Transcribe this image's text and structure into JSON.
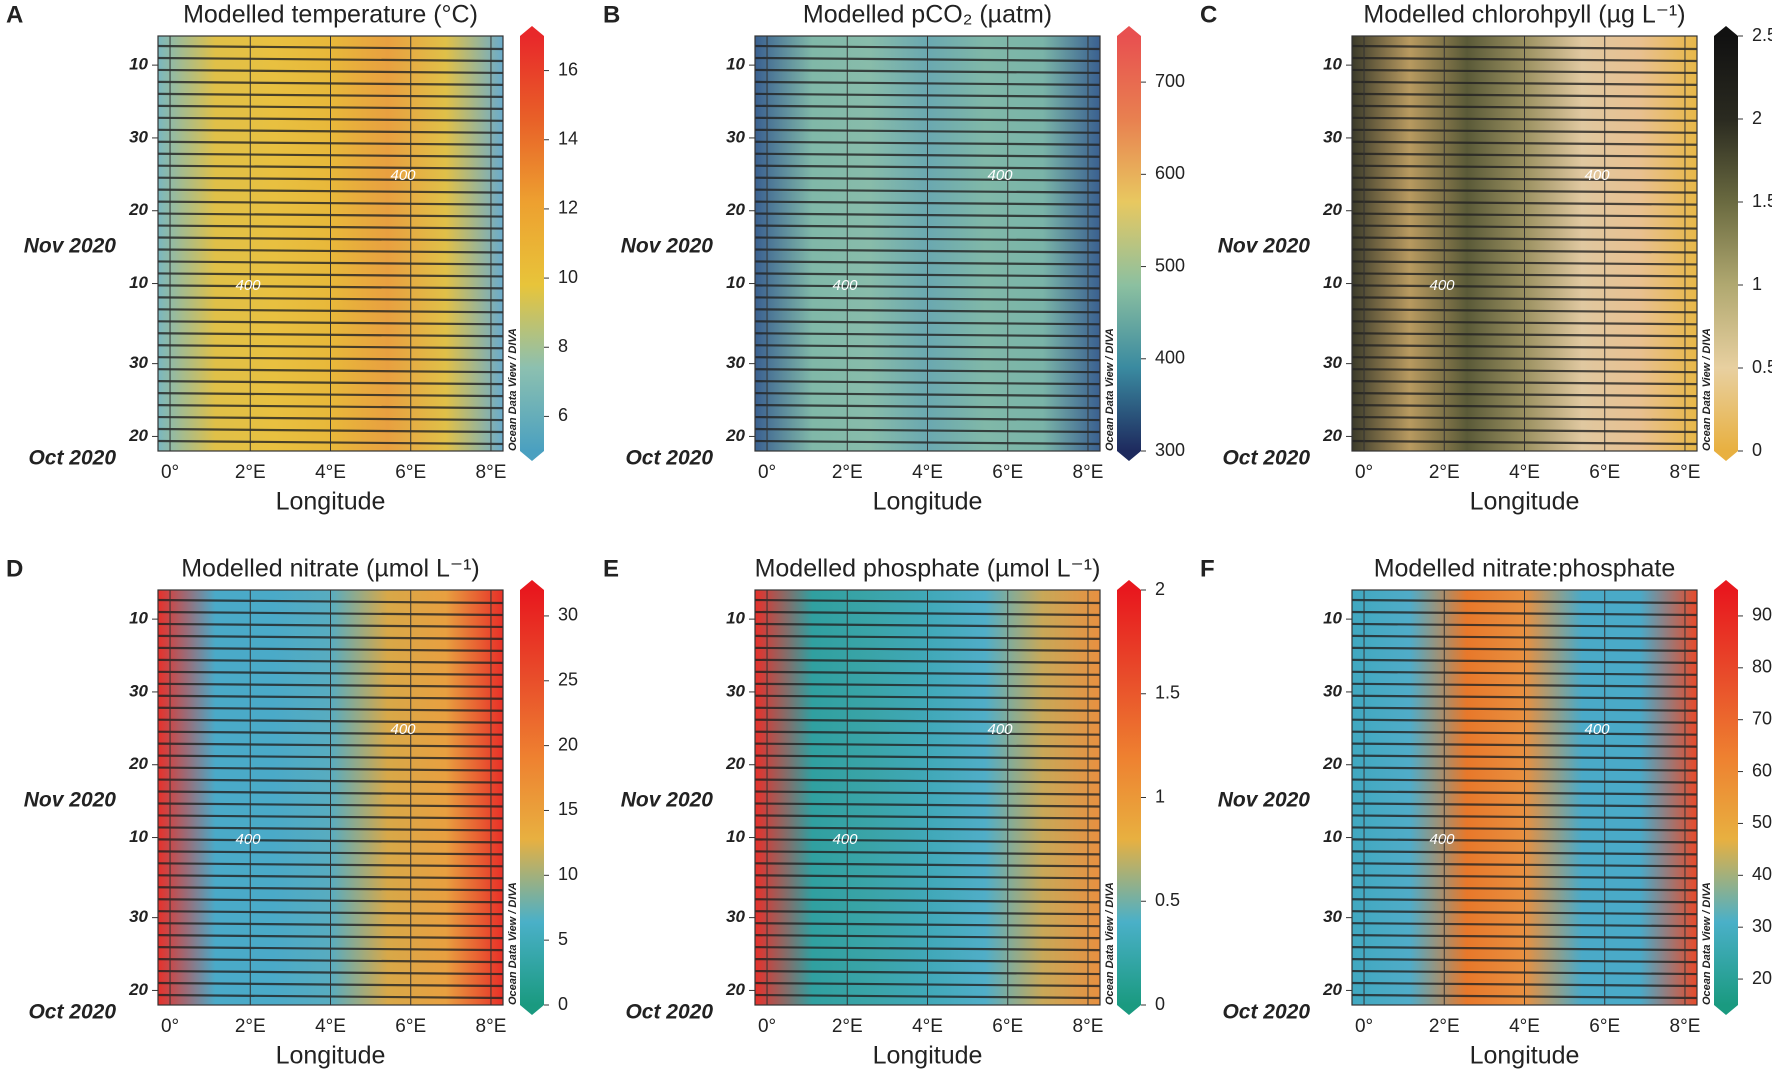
{
  "chart_data": [
    {
      "type": "heatmap",
      "panel_label": "A",
      "title": "Modelled temperature (°C)",
      "xlabel": "Longitude",
      "xlim": [
        -0.3,
        8.3
      ],
      "xticks": [
        {
          "value": 0,
          "label": "0°"
        },
        {
          "value": 2,
          "label": "2°E"
        },
        {
          "value": 4,
          "label": "4°E"
        },
        {
          "value": 6,
          "label": "6°E"
        },
        {
          "value": 8,
          "label": "8°E"
        }
      ],
      "ylim": [
        "2020-10-18",
        "2020-12-14"
      ],
      "yticks": [
        {
          "value": "2020-12-10",
          "label": "10"
        },
        {
          "value": "2020-11-30",
          "label": "30"
        },
        {
          "value": "2020-11-20",
          "label": "20"
        },
        {
          "value": "2020-11-10",
          "label": "10"
        },
        {
          "value": "2020-10-30",
          "label": "30"
        },
        {
          "value": "2020-10-20",
          "label": "20"
        }
      ],
      "months": [
        {
          "value": "2020-11-15",
          "label": "Nov 2020"
        },
        {
          "value": "2020-10-18",
          "label": "Oct 2020"
        }
      ],
      "contour_labels": [
        "400",
        "400"
      ],
      "colorbar": {
        "label": "Ocean Data View / DIVA",
        "lim": [
          5,
          17
        ],
        "ticks": [
          6,
          8,
          10,
          12,
          14,
          16
        ],
        "colors": [
          "#4aa0c0",
          "#8cc0b0",
          "#e8c43a",
          "#eda030",
          "#e86028",
          "#e8282a"
        ]
      },
      "field_colors": [
        "#7ab8c0",
        "#e0c048",
        "#e8c040",
        "#e8b83a",
        "#e8a040",
        "#e0c048",
        "#6aaccc"
      ]
    },
    {
      "type": "heatmap",
      "panel_label": "B",
      "title": "Modelled pCO₂ (µatm)",
      "xlabel": "Longitude",
      "xlim": [
        -0.3,
        8.3
      ],
      "xticks": [
        {
          "value": 0,
          "label": "0°"
        },
        {
          "value": 2,
          "label": "2°E"
        },
        {
          "value": 4,
          "label": "4°E"
        },
        {
          "value": 6,
          "label": "6°E"
        },
        {
          "value": 8,
          "label": "8°E"
        }
      ],
      "ylim": [
        "2020-10-18",
        "2020-12-14"
      ],
      "yticks": [
        {
          "value": "2020-12-10",
          "label": "10"
        },
        {
          "value": "2020-11-30",
          "label": "30"
        },
        {
          "value": "2020-11-20",
          "label": "20"
        },
        {
          "value": "2020-11-10",
          "label": "10"
        },
        {
          "value": "2020-10-30",
          "label": "30"
        },
        {
          "value": "2020-10-20",
          "label": "20"
        }
      ],
      "months": [
        {
          "value": "2020-11-15",
          "label": "Nov 2020"
        },
        {
          "value": "2020-10-18",
          "label": "Oct 2020"
        }
      ],
      "contour_labels": [
        "400",
        "400"
      ],
      "colorbar": {
        "label": "Ocean Data View / DIVA",
        "lim": [
          300,
          750
        ],
        "ticks": [
          300,
          400,
          500,
          600,
          700
        ],
        "colors": [
          "#1e2a5e",
          "#3a8aa0",
          "#8cc0a0",
          "#e8c860",
          "#e88050",
          "#e85050"
        ]
      },
      "field_colors": [
        "#3a6090",
        "#80b8a8",
        "#88bcaa",
        "#6aa8b0",
        "#80b8a8",
        "#7ab4a8",
        "#3a6090"
      ]
    },
    {
      "type": "heatmap",
      "panel_label": "C",
      "title": "Modelled chlorohpyll (µg L⁻¹)",
      "xlabel": "Longitude",
      "xlim": [
        -0.3,
        8.3
      ],
      "xticks": [
        {
          "value": 0,
          "label": "0°"
        },
        {
          "value": 2,
          "label": "2°E"
        },
        {
          "value": 4,
          "label": "4°E"
        },
        {
          "value": 6,
          "label": "6°E"
        },
        {
          "value": 8,
          "label": "8°E"
        }
      ],
      "ylim": [
        "2020-10-18",
        "2020-12-14"
      ],
      "yticks": [
        {
          "value": "2020-12-10",
          "label": "10"
        },
        {
          "value": "2020-11-30",
          "label": "30"
        },
        {
          "value": "2020-11-20",
          "label": "20"
        },
        {
          "value": "2020-11-10",
          "label": "10"
        },
        {
          "value": "2020-10-30",
          "label": "30"
        },
        {
          "value": "2020-10-20",
          "label": "20"
        }
      ],
      "months": [
        {
          "value": "2020-11-15",
          "label": "Nov 2020"
        },
        {
          "value": "2020-10-18",
          "label": "Oct 2020"
        }
      ],
      "contour_labels": [
        "400",
        "400"
      ],
      "colorbar": {
        "label": "Ocean Data View / DIVA",
        "lim": [
          0,
          2.5
        ],
        "ticks": [
          0,
          0.5,
          1,
          1.5,
          2,
          2.5
        ],
        "colors": [
          "#e8b040",
          "#e8d0a0",
          "#b0a870",
          "#6a6a40",
          "#2a2a20",
          "#111111"
        ]
      },
      "field_colors": [
        "#3a3a2a",
        "#b89a60",
        "#5a5a38",
        "#9a9060",
        "#e0c8a0",
        "#e8c090",
        "#e8b848"
      ]
    },
    {
      "type": "heatmap",
      "panel_label": "D",
      "title": "Modelled nitrate (µmol L⁻¹)",
      "xlabel": "Longitude",
      "xlim": [
        -0.3,
        8.3
      ],
      "xticks": [
        {
          "value": 0,
          "label": "0°"
        },
        {
          "value": 2,
          "label": "2°E"
        },
        {
          "value": 4,
          "label": "4°E"
        },
        {
          "value": 6,
          "label": "6°E"
        },
        {
          "value": 8,
          "label": "8°E"
        }
      ],
      "ylim": [
        "2020-10-18",
        "2020-12-14"
      ],
      "yticks": [
        {
          "value": "2020-12-10",
          "label": "10"
        },
        {
          "value": "2020-11-30",
          "label": "30"
        },
        {
          "value": "2020-11-20",
          "label": "20"
        },
        {
          "value": "2020-11-10",
          "label": "10"
        },
        {
          "value": "2020-10-30",
          "label": "30"
        },
        {
          "value": "2020-10-20",
          "label": "20"
        }
      ],
      "months": [
        {
          "value": "2020-11-15",
          "label": "Nov 2020"
        },
        {
          "value": "2020-10-18",
          "label": "Oct 2020"
        }
      ],
      "contour_labels": [
        "400",
        "400"
      ],
      "colorbar": {
        "label": "Ocean Data View / DIVA",
        "lim": [
          0,
          32
        ],
        "ticks": [
          0,
          5,
          10,
          15,
          20,
          25,
          30
        ],
        "colors": [
          "#1a9a80",
          "#4ab0c8",
          "#e8b040",
          "#ee8030",
          "#e84a2a",
          "#e8181e"
        ]
      },
      "field_colors": [
        "#e8302a",
        "#4aaac8",
        "#4aaac8",
        "#58acc0",
        "#d8a848",
        "#e8a040",
        "#e83028"
      ]
    },
    {
      "type": "heatmap",
      "panel_label": "E",
      "title": "Modelled phosphate (µmol L⁻¹)",
      "xlabel": "Longitude",
      "xlim": [
        -0.3,
        8.3
      ],
      "xticks": [
        {
          "value": 0,
          "label": "0°"
        },
        {
          "value": 2,
          "label": "2°E"
        },
        {
          "value": 4,
          "label": "4°E"
        },
        {
          "value": 6,
          "label": "6°E"
        },
        {
          "value": 8,
          "label": "8°E"
        }
      ],
      "ylim": [
        "2020-10-18",
        "2020-12-14"
      ],
      "yticks": [
        {
          "value": "2020-12-10",
          "label": "10"
        },
        {
          "value": "2020-11-30",
          "label": "30"
        },
        {
          "value": "2020-11-20",
          "label": "20"
        },
        {
          "value": "2020-11-10",
          "label": "10"
        },
        {
          "value": "2020-10-30",
          "label": "30"
        },
        {
          "value": "2020-10-20",
          "label": "20"
        }
      ],
      "months": [
        {
          "value": "2020-11-15",
          "label": "Nov 2020"
        },
        {
          "value": "2020-10-18",
          "label": "Oct 2020"
        }
      ],
      "contour_labels": [
        "400",
        "400"
      ],
      "colorbar": {
        "label": "Ocean Data View / DIVA",
        "lim": [
          0,
          2
        ],
        "ticks": [
          0,
          0.5,
          1,
          1.5,
          2
        ],
        "colors": [
          "#1a9a80",
          "#4ab0c8",
          "#e8b040",
          "#ee8030",
          "#e84a2a",
          "#e8181e"
        ]
      },
      "field_colors": [
        "#e8302a",
        "#30a0a0",
        "#3aa4a8",
        "#40a8b8",
        "#50aec8",
        "#c8a858",
        "#e89040"
      ]
    },
    {
      "type": "heatmap",
      "panel_label": "F",
      "title": "Modelled nitrate:phosphate",
      "xlabel": "Longitude",
      "xlim": [
        -0.3,
        8.3
      ],
      "xticks": [
        {
          "value": 0,
          "label": "0°"
        },
        {
          "value": 2,
          "label": "2°E"
        },
        {
          "value": 4,
          "label": "4°E"
        },
        {
          "value": 6,
          "label": "6°E"
        },
        {
          "value": 8,
          "label": "8°E"
        }
      ],
      "ylim": [
        "2020-10-18",
        "2020-12-14"
      ],
      "yticks": [
        {
          "value": "2020-12-10",
          "label": "10"
        },
        {
          "value": "2020-11-30",
          "label": "30"
        },
        {
          "value": "2020-11-20",
          "label": "20"
        },
        {
          "value": "2020-11-10",
          "label": "10"
        },
        {
          "value": "2020-10-30",
          "label": "30"
        },
        {
          "value": "2020-10-20",
          "label": "20"
        }
      ],
      "months": [
        {
          "value": "2020-11-15",
          "label": "Nov 2020"
        },
        {
          "value": "2020-10-18",
          "label": "Oct 2020"
        }
      ],
      "contour_labels": [
        "400",
        "400"
      ],
      "colorbar": {
        "label": "Ocean Data View / DIVA",
        "lim": [
          15,
          95
        ],
        "ticks": [
          20,
          30,
          40,
          50,
          60,
          70,
          80,
          90
        ],
        "colors": [
          "#1a9a80",
          "#4ab0c8",
          "#e8b040",
          "#ee8030",
          "#e84a2a",
          "#e8181e"
        ]
      },
      "field_colors": [
        "#40a8c0",
        "#50acc8",
        "#e8782a",
        "#e89040",
        "#4aaac8",
        "#4aaac8",
        "#e84a2a"
      ]
    }
  ]
}
